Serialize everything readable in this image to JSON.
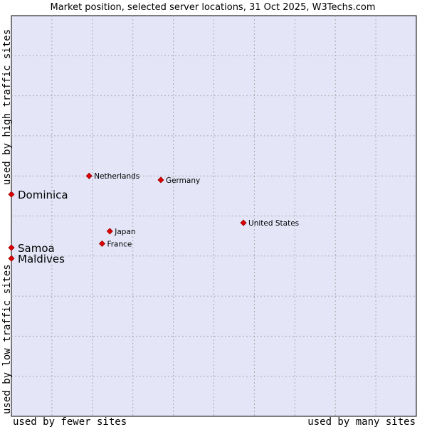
{
  "chart_data": {
    "type": "scatter",
    "title": "Market position, selected server locations, 31 Oct 2025, W3Techs.com",
    "xlabel_left": "used by fewer sites",
    "xlabel_right": "used by many sites",
    "ylabel_bottom": "used by low traffic sites",
    "ylabel_top": "used by high traffic sites",
    "xlim": [
      0,
      100
    ],
    "ylim": [
      0,
      100
    ],
    "grid": true,
    "colors": {
      "plot_background": "#e4e6f8",
      "grid": "#aaaaaa",
      "marker": "#dd0000",
      "marker_edge": "#990000"
    },
    "points": [
      {
        "label": "Netherlands",
        "x": 19.2,
        "y": 60.0,
        "emphasis": false
      },
      {
        "label": "Germany",
        "x": 36.9,
        "y": 59.0,
        "emphasis": false
      },
      {
        "label": "Dominica",
        "x": 0,
        "y": 55.4,
        "emphasis": true
      },
      {
        "label": "United States",
        "x": 57.3,
        "y": 48.3,
        "emphasis": false
      },
      {
        "label": "Japan",
        "x": 24.3,
        "y": 46.2,
        "emphasis": false
      },
      {
        "label": "France",
        "x": 22.4,
        "y": 43.1,
        "emphasis": false
      },
      {
        "label": "Samoa",
        "x": 0,
        "y": 42.1,
        "emphasis": true
      },
      {
        "label": "Maldives",
        "x": 0,
        "y": 39.4,
        "emphasis": true
      }
    ]
  }
}
